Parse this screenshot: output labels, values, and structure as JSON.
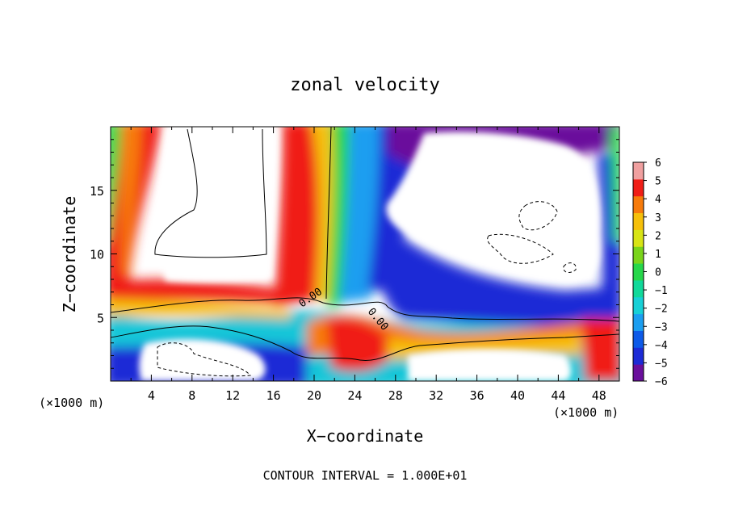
{
  "chart_data": {
    "type": "heatmap",
    "title": "zonal velocity",
    "xlabel": "X−coordinate",
    "ylabel": "Z−coordinate",
    "x_unit": "(×1000 m)",
    "y_unit": "(×1000 m)",
    "footer": "CONTOUR INTERVAL = 1.000E+01",
    "xlim": [
      0,
      50
    ],
    "ylim": [
      0,
      20
    ],
    "x_ticks": [
      "4",
      "8",
      "12",
      "16",
      "20",
      "24",
      "28",
      "32",
      "36",
      "40",
      "44",
      "48"
    ],
    "y_ticks": [
      "5",
      "10",
      "15"
    ],
    "colorbar": {
      "range": [
        -6,
        6
      ],
      "ticks": [
        "6",
        "5",
        "4",
        "3",
        "2",
        "1",
        "0",
        "−1",
        "−2",
        "−3",
        "−4",
        "−5",
        "−6"
      ],
      "colors": [
        "#6a0f9c",
        "#1d2bd6",
        "#0d5ae8",
        "#1b9ef0",
        "#17d0d6",
        "#10d99a",
        "#26d74a",
        "#7ad41a",
        "#d8e415",
        "#f6c00a",
        "#f77b0b",
        "#f01e17",
        "#f0a0a0"
      ]
    },
    "contour_labels": [
      "0.00",
      "0.00"
    ],
    "regions_out_of_range": "white"
  }
}
